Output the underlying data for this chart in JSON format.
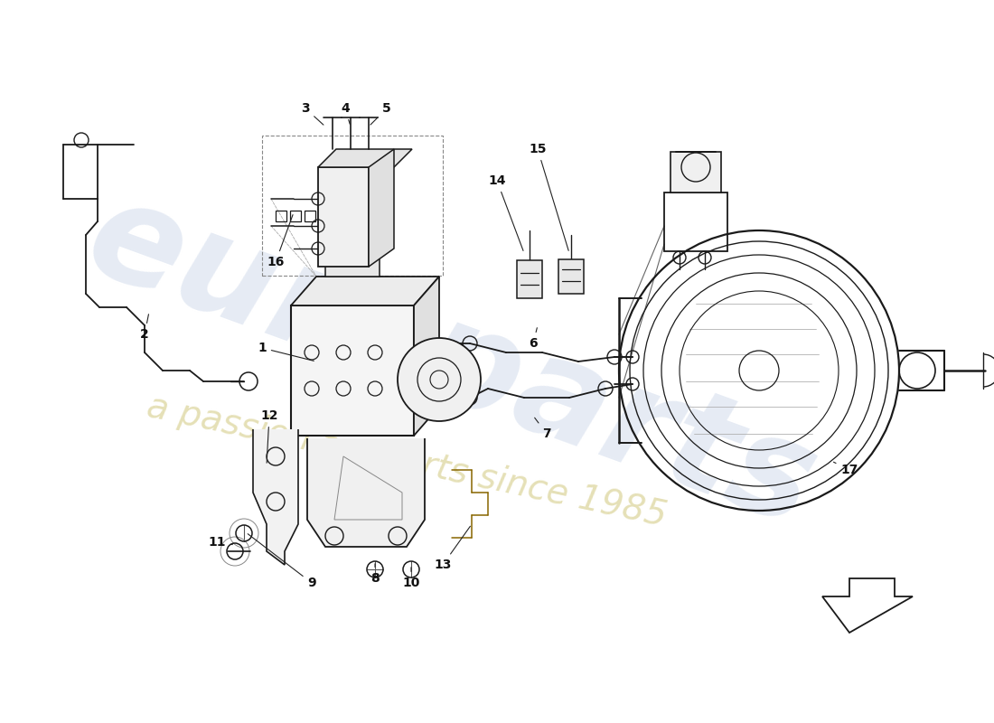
{
  "bg_color": "#ffffff",
  "line_color": "#1a1a1a",
  "label_color": "#111111",
  "watermark_color1": "#c8d4e8",
  "watermark_color2": "#d8d090",
  "component_lw": 1.1,
  "label_fontsize": 10,
  "figsize": [
    11.0,
    8.0
  ],
  "dpi": 100
}
